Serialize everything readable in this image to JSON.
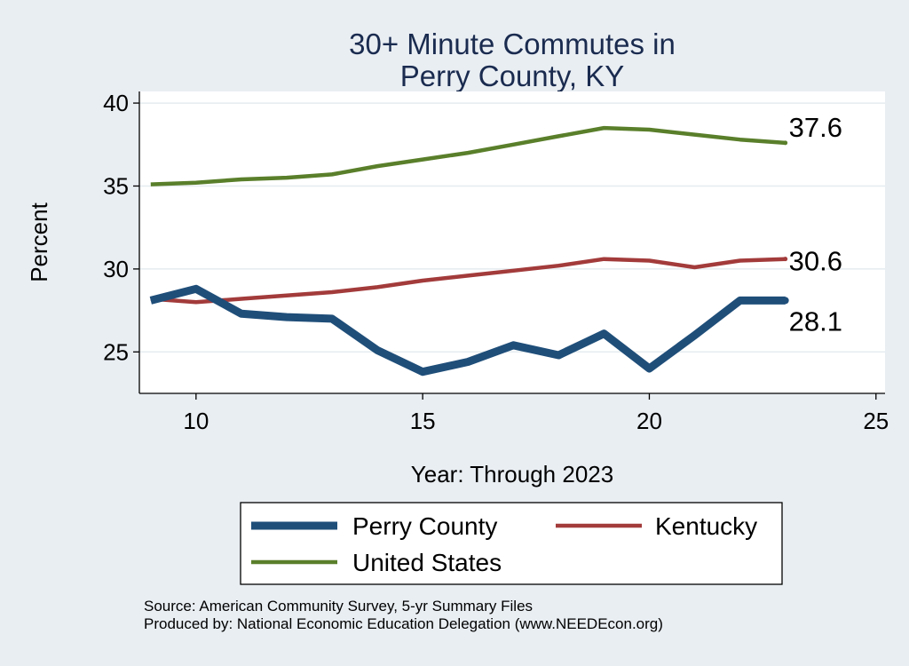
{
  "chart_data": {
    "type": "line",
    "title": [
      "30+ Minute Commutes in",
      "Perry County, KY"
    ],
    "xlabel": "Year: Through 2023",
    "ylabel": "Percent",
    "xlim": [
      8.75,
      25.2
    ],
    "ylim": [
      22.5,
      40.7
    ],
    "xticks": [
      10,
      15,
      20,
      25
    ],
    "yticks": [
      25,
      30,
      35,
      40
    ],
    "grid": true,
    "legend_position": "bottom",
    "series": [
      {
        "name": "Perry County",
        "color": "#1f4e79",
        "line_weight": "thick",
        "end_label": "28.1",
        "x": [
          9,
          10,
          11,
          12,
          13,
          14,
          15,
          16,
          17,
          18,
          19,
          20,
          21,
          22,
          23
        ],
        "y": [
          28.1,
          28.8,
          27.3,
          27.1,
          27.0,
          25.1,
          23.8,
          24.4,
          25.4,
          24.8,
          26.1,
          24.0,
          26.0,
          28.1,
          28.1
        ]
      },
      {
        "name": "Kentucky",
        "color": "#a33b3b",
        "line_weight": "medium",
        "end_label": "30.6",
        "x": [
          9,
          10,
          11,
          12,
          13,
          14,
          15,
          16,
          17,
          18,
          19,
          20,
          21,
          22,
          23
        ],
        "y": [
          28.2,
          28.0,
          28.2,
          28.4,
          28.6,
          28.9,
          29.3,
          29.6,
          29.9,
          30.2,
          30.6,
          30.5,
          30.1,
          30.5,
          30.6
        ]
      },
      {
        "name": "United States",
        "color": "#5a7f2b",
        "line_weight": "medium",
        "end_label": "37.6",
        "x": [
          9,
          10,
          11,
          12,
          13,
          14,
          15,
          16,
          17,
          18,
          19,
          20,
          21,
          22,
          23
        ],
        "y": [
          35.1,
          35.2,
          35.4,
          35.5,
          35.7,
          36.2,
          36.6,
          37.0,
          37.5,
          38.0,
          38.5,
          38.4,
          38.1,
          37.8,
          37.6
        ]
      }
    ]
  },
  "notes": {
    "source": "Source: American Community Survey, 5-yr Summary Files",
    "produced_by": "Produced by: National Economic Education Delegation (www.NEEDEcon.org)"
  },
  "colors": {
    "page_background": "#e9eef3",
    "plot_background": "#ffffff",
    "gridline": "#e5ecef",
    "title": "#1a2b4f"
  }
}
